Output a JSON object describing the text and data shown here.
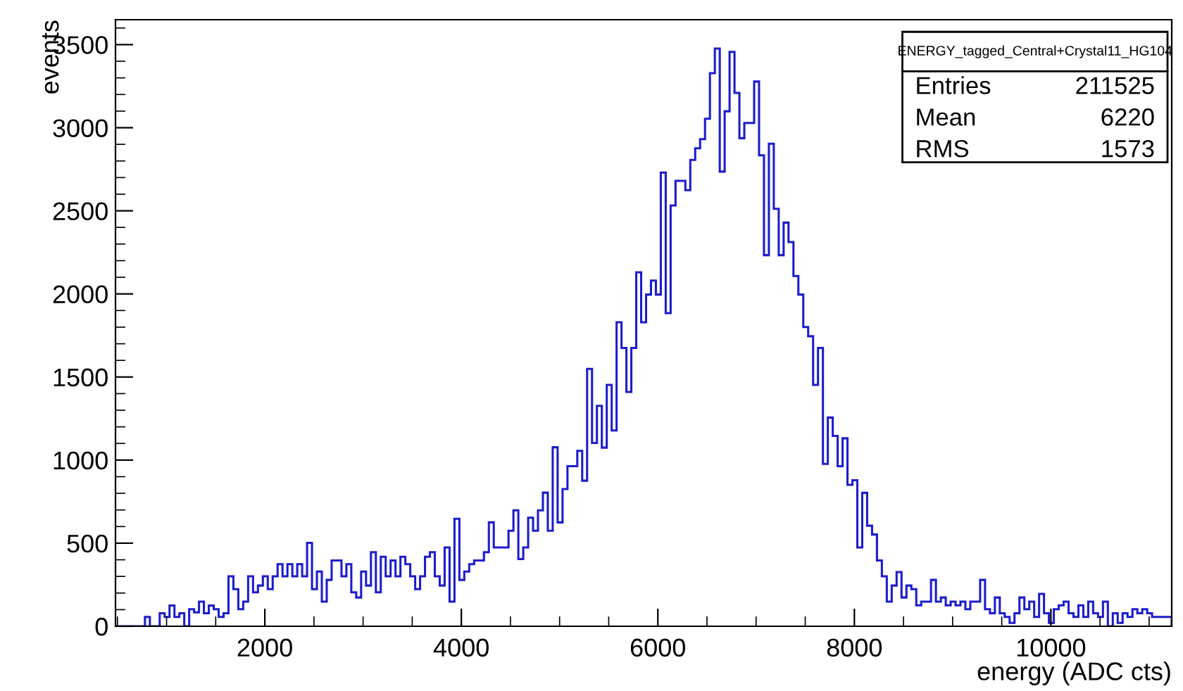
{
  "chart_data": {
    "type": "histogram",
    "xlabel": "energy (ADC cts)",
    "ylabel": "events",
    "bins": [
      480,
      530,
      580,
      630,
      680,
      730,
      780,
      830,
      880,
      930,
      980,
      1030,
      1080,
      1130,
      1180,
      1230,
      1280,
      1330,
      1380,
      1430,
      1480,
      1530,
      1580,
      1630,
      1680,
      1730,
      1780,
      1830,
      1880,
      1930,
      1980,
      2030,
      2080,
      2130,
      2180,
      2230,
      2280,
      2330,
      2380,
      2430,
      2480,
      2530,
      2580,
      2630,
      2680,
      2730,
      2780,
      2830,
      2880,
      2930,
      2980,
      3030,
      3080,
      3130,
      3180,
      3230,
      3280,
      3330,
      3380,
      3430,
      3480,
      3530,
      3580,
      3630,
      3680,
      3730,
      3780,
      3830,
      3880,
      3930,
      3980,
      4030,
      4080,
      4130,
      4180,
      4230,
      4280,
      4330,
      4380,
      4430,
      4480,
      4530,
      4580,
      4630,
      4680,
      4730,
      4780,
      4830,
      4880,
      4930,
      4980,
      5030,
      5080,
      5130,
      5180,
      5230,
      5280,
      5330,
      5380,
      5430,
      5480,
      5530,
      5580,
      5630,
      5680,
      5730,
      5780,
      5830,
      5880,
      5930,
      5980,
      6030,
      6080,
      6130,
      6180,
      6230,
      6280,
      6330,
      6380,
      6430,
      6480,
      6530,
      6580,
      6630,
      6680,
      6730,
      6780,
      6830,
      6880,
      6930,
      6980,
      7030,
      7080,
      7130,
      7180,
      7230,
      7280,
      7330,
      7380,
      7430,
      7480,
      7530,
      7580,
      7630,
      7680,
      7730,
      7780,
      7830,
      7880,
      7930,
      7980,
      8030,
      8080,
      8130,
      8180,
      8230,
      8280,
      8330,
      8380,
      8430,
      8480,
      8530,
      8580,
      8630,
      8680,
      8730,
      8780,
      8830,
      8880,
      8930,
      8980,
      9030,
      9080,
      9130,
      9180,
      9230,
      9280,
      9330,
      9380,
      9430,
      9480,
      9530,
      9580,
      9630,
      9680,
      9730,
      9780,
      9830,
      9880,
      9930,
      9980,
      10030,
      10080,
      10130,
      10180,
      10230,
      10280,
      10330,
      10380,
      10430,
      10480,
      10530,
      10580,
      10630,
      10680,
      10730,
      10780,
      10830,
      10880,
      10930,
      10980,
      11030,
      11080,
      11130,
      11180,
      11230
    ],
    "values": [
      0,
      0,
      0,
      0,
      0,
      0,
      56,
      0,
      0,
      78,
      56,
      125,
      56,
      78,
      0,
      103,
      84,
      148,
      78,
      125,
      103,
      56,
      78,
      301,
      223,
      103,
      148,
      301,
      204,
      245,
      301,
      223,
      301,
      374,
      301,
      374,
      301,
      374,
      301,
      502,
      223,
      329,
      148,
      279,
      396,
      396,
      301,
      374,
      204,
      173,
      329,
      245,
      446,
      204,
      418,
      301,
      396,
      301,
      418,
      374,
      301,
      223,
      301,
      418,
      446,
      301,
      245,
      474,
      148,
      647,
      279,
      329,
      374,
      396,
      396,
      446,
      625,
      474,
      474,
      474,
      575,
      698,
      404,
      474,
      653,
      575,
      698,
      804,
      575,
      1077,
      625,
      826,
      963,
      963,
      1055,
      876,
      1549,
      1103,
      1326,
      1075,
      1452,
      1178,
      1829,
      1675,
      1410,
      1675,
      2130,
      1829,
      1996,
      2080,
      1996,
      2730,
      1884,
      2532,
      2680,
      2680,
      2624,
      2806,
      2876,
      2931,
      3054,
      3328,
      3476,
      2736,
      3099,
      3456,
      3210,
      2937,
      3029,
      3029,
      3278,
      2834,
      2233,
      2904,
      2512,
      2233,
      2429,
      2312,
      2108,
      1996,
      1801,
      1745,
      1452,
      1675,
      977,
      1256,
      1145,
      963,
      1131,
      851,
      879,
      474,
      803,
      605,
      552,
      396,
      301,
      148,
      245,
      326,
      173,
      245,
      223,
      126,
      148,
      148,
      279,
      148,
      173,
      126,
      148,
      126,
      148,
      103,
      148,
      148,
      279,
      103,
      78,
      173,
      78,
      56,
      20,
      78,
      173,
      103,
      148,
      56,
      195,
      78,
      20,
      103,
      126,
      148,
      78,
      56,
      126,
      56,
      148,
      78,
      56,
      148,
      0,
      78,
      20,
      78,
      56,
      103,
      78,
      103,
      78,
      56,
      56,
      56,
      56
    ],
    "color": "#1c1ccc",
    "xlim": [
      480,
      11230
    ],
    "ylim": [
      0,
      3650
    ],
    "xticks": [
      2000,
      4000,
      6000,
      8000,
      10000
    ],
    "yticks": [
      0,
      500,
      1000,
      1500,
      2000,
      2500,
      3000,
      3500
    ],
    "grid": false,
    "annotations": [
      "ENERGY_tagged_Central+Crystal11_HG104",
      "Entries",
      "211525",
      "Mean",
      "6220",
      "RMS",
      "1573"
    ]
  }
}
